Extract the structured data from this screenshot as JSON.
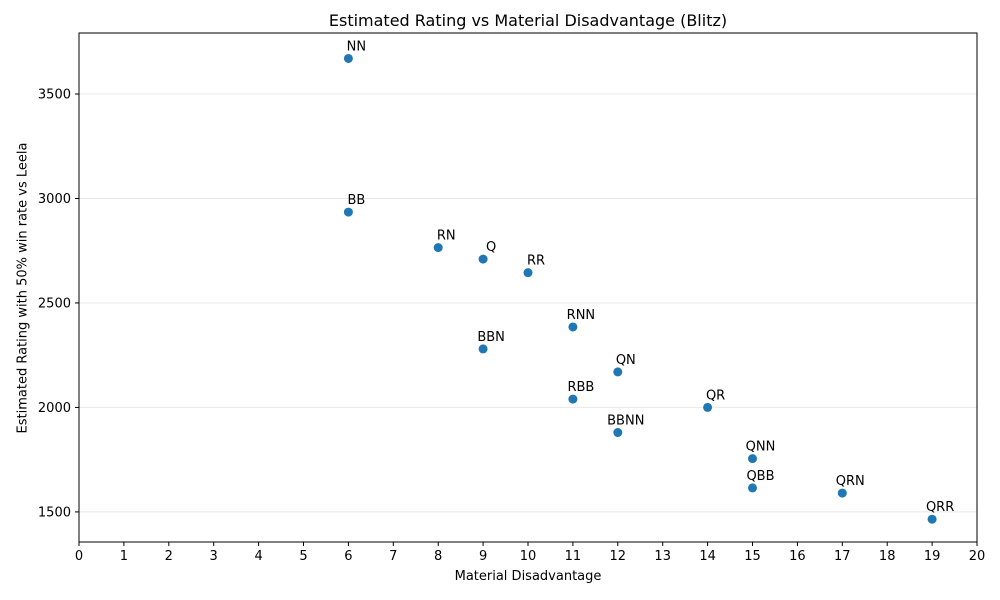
{
  "chart_data": {
    "type": "scatter",
    "title": "Estimated Rating vs Material Disadvantage (Blitz)",
    "xlabel": "Material Disadvantage",
    "ylabel": "Estimated Rating with 50% win rate vs Leela",
    "xlim": [
      0,
      20
    ],
    "ylim": [
      1356,
      3792
    ],
    "xticks": [
      0,
      1,
      2,
      3,
      4,
      5,
      6,
      7,
      8,
      9,
      10,
      11,
      12,
      13,
      14,
      15,
      16,
      17,
      18,
      19,
      20
    ],
    "yticks": [
      1500,
      2000,
      2500,
      3000,
      3500
    ],
    "grid": "horizontal-only",
    "legend": "none",
    "marker_color": "#1f77b4",
    "grid_color": "#e8e8e8",
    "axis_color": "#000000",
    "points": [
      {
        "label": "NN",
        "x": 6,
        "y": 3670
      },
      {
        "label": "BB",
        "x": 6,
        "y": 2935
      },
      {
        "label": "RN",
        "x": 8,
        "y": 2765
      },
      {
        "label": "Q",
        "x": 9,
        "y": 2710
      },
      {
        "label": "RR",
        "x": 10,
        "y": 2645
      },
      {
        "label": "RNN",
        "x": 11,
        "y": 2385
      },
      {
        "label": "BBN",
        "x": 9,
        "y": 2280
      },
      {
        "label": "QN",
        "x": 12,
        "y": 2170
      },
      {
        "label": "RBB",
        "x": 11,
        "y": 2040
      },
      {
        "label": "QR",
        "x": 14,
        "y": 2000
      },
      {
        "label": "BBNN",
        "x": 12,
        "y": 1880
      },
      {
        "label": "QNN",
        "x": 15,
        "y": 1755
      },
      {
        "label": "QBB",
        "x": 15,
        "y": 1615
      },
      {
        "label": "QRN",
        "x": 17,
        "y": 1590
      },
      {
        "label": "QRR",
        "x": 19,
        "y": 1465
      }
    ]
  }
}
